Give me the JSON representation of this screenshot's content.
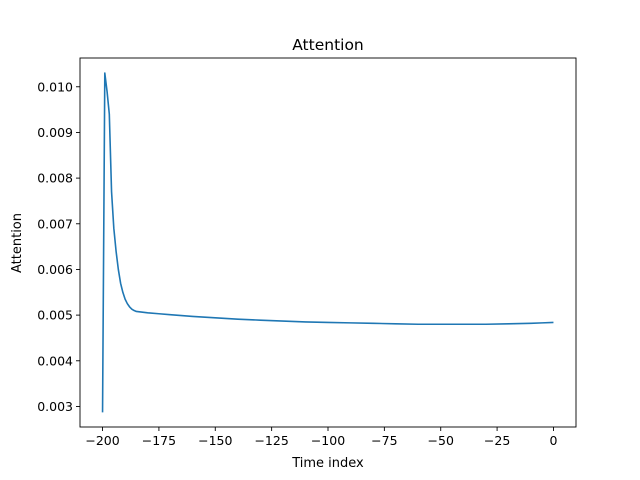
{
  "chart_data": {
    "type": "line",
    "title": "Attention",
    "xlabel": "Time index",
    "ylabel": "Attention",
    "xlim": [
      -210,
      10
    ],
    "ylim": [
      0.00255,
      0.01063
    ],
    "x_ticks": [
      -200,
      -175,
      -150,
      -125,
      -100,
      -75,
      -50,
      -25,
      0
    ],
    "x_tick_labels": [
      "−200",
      "−175",
      "−150",
      "−125",
      "−100",
      "−75",
      "−50",
      "−25",
      "0"
    ],
    "y_ticks": [
      0.003,
      0.004,
      0.005,
      0.006,
      0.007,
      0.008,
      0.009,
      0.01
    ],
    "y_tick_labels": [
      "0.003",
      "0.004",
      "0.005",
      "0.006",
      "0.007",
      "0.008",
      "0.009",
      "0.010"
    ],
    "grid": false,
    "line_color": "#1f77b4",
    "series": [
      {
        "x": [
          -200,
          -199,
          -198,
          -197,
          -196,
          -195,
          -194,
          -193,
          -192,
          -191,
          -190,
          -189,
          -188,
          -187,
          -186,
          -185,
          -180,
          -175,
          -170,
          -165,
          -160,
          -150,
          -140,
          -130,
          -120,
          -110,
          -100,
          -90,
          -80,
          -70,
          -60,
          -50,
          -40,
          -30,
          -20,
          -10,
          -5,
          0
        ],
        "y": [
          0.00287,
          0.0103,
          0.0099,
          0.0094,
          0.0077,
          0.0069,
          0.0064,
          0.006,
          0.0057,
          0.0055,
          0.00535,
          0.00525,
          0.00518,
          0.00513,
          0.0051,
          0.00508,
          0.00505,
          0.00503,
          0.00501,
          0.00499,
          0.00497,
          0.00494,
          0.00491,
          0.00489,
          0.00487,
          0.00485,
          0.00484,
          0.00483,
          0.00482,
          0.00481,
          0.0048,
          0.0048,
          0.0048,
          0.0048,
          0.00481,
          0.00482,
          0.00483,
          0.00484
        ]
      }
    ]
  }
}
